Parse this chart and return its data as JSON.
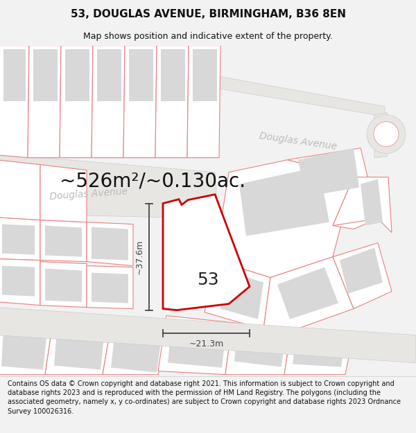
{
  "title_line1": "53, DOUGLAS AVENUE, BIRMINGHAM, B36 8EN",
  "title_line2": "Map shows position and indicative extent of the property.",
  "area_text": "~526m²/~0.130ac.",
  "number_label": "53",
  "dim_height": "~37.6m",
  "dim_width": "~21.3m",
  "street_name_left": "Douglas Avenue",
  "street_name_right": "Douglas Avenue",
  "footer_text": "Contains OS data © Crown copyright and database right 2021. This information is subject to Crown copyright and database rights 2023 and is reproduced with the permission of HM Land Registry. The polygons (including the associated geometry, namely x, y co-ordinates) are subject to Crown copyright and database rights 2023 Ordnance Survey 100026316.",
  "bg_color": "#f2f2f2",
  "map_bg": "#ffffff",
  "road_fill": "#e8e6e3",
  "road_edge": "#cccccc",
  "parcel_stroke": "#e88080",
  "parcel_fill": "#ffffff",
  "building_fill": "#d8d8d8",
  "property_stroke": "#cc0000",
  "property_fill": "#ffffff",
  "dim_color": "#444444",
  "street_color": "#bbbbbb",
  "title_color": "#111111",
  "footer_color": "#111111",
  "title_fontsize": 11,
  "subtitle_fontsize": 9,
  "area_fontsize": 20,
  "label_fontsize": 18,
  "dim_fontsize": 9,
  "street_fontsize": 10,
  "footer_fontsize": 7
}
